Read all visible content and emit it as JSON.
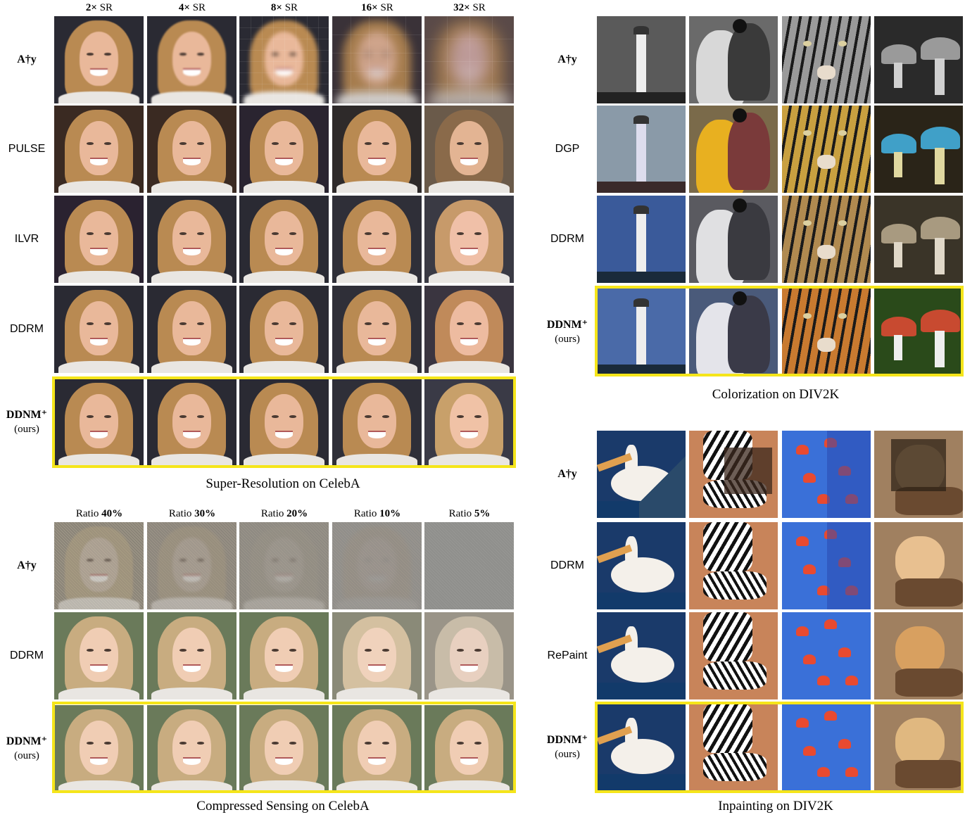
{
  "panels": {
    "sr": {
      "caption": "Super-Resolution on CelebA",
      "columns": [
        {
          "num": "2×",
          "rest": " SR"
        },
        {
          "num": "4×",
          "rest": " SR"
        },
        {
          "num": "8×",
          "rest": " SR"
        },
        {
          "num": "16×",
          "rest": " SR"
        },
        {
          "num": "32×",
          "rest": " SR"
        }
      ],
      "rows": [
        {
          "label": "A†y",
          "bold": true,
          "sub": ""
        },
        {
          "label": "PULSE",
          "bold": false,
          "sub": ""
        },
        {
          "label": "ILVR",
          "bold": false,
          "sub": ""
        },
        {
          "label": "DDRM",
          "bold": false,
          "sub": ""
        },
        {
          "label": "DDNM⁺",
          "bold": true,
          "sub": "(ours)"
        }
      ]
    },
    "cs": {
      "caption": "Compressed Sensing on CelebA",
      "columns": [
        {
          "num": "Ratio ",
          "rest": "40%"
        },
        {
          "num": "Ratio ",
          "rest": "30%"
        },
        {
          "num": "Ratio ",
          "rest": "20%"
        },
        {
          "num": "Ratio ",
          "rest": "10%"
        },
        {
          "num": "Ratio ",
          "rest": "5%"
        }
      ],
      "rows": [
        {
          "label": "A†y",
          "bold": true,
          "sub": ""
        },
        {
          "label": "DDRM",
          "bold": false,
          "sub": ""
        },
        {
          "label": "DDNM⁺",
          "bold": true,
          "sub": "(ours)"
        }
      ]
    },
    "color": {
      "caption": "Colorization on DIV2K",
      "rows": [
        {
          "label": "A†y",
          "bold": true,
          "sub": ""
        },
        {
          "label": "DGP",
          "bold": false,
          "sub": ""
        },
        {
          "label": "DDRM",
          "bold": false,
          "sub": ""
        },
        {
          "label": "DDNM⁺",
          "bold": true,
          "sub": "(ours)"
        }
      ]
    },
    "inpaint": {
      "caption": "Inpainting on DIV2K",
      "rows": [
        {
          "label": "A†y",
          "bold": true,
          "sub": ""
        },
        {
          "label": "DDRM",
          "bold": false,
          "sub": ""
        },
        {
          "label": "RePaint",
          "bold": false,
          "sub": ""
        },
        {
          "label": "DDNM⁺",
          "bold": true,
          "sub": "(ours)"
        }
      ]
    }
  },
  "colors": {
    "highlight": "#f5e51a"
  }
}
